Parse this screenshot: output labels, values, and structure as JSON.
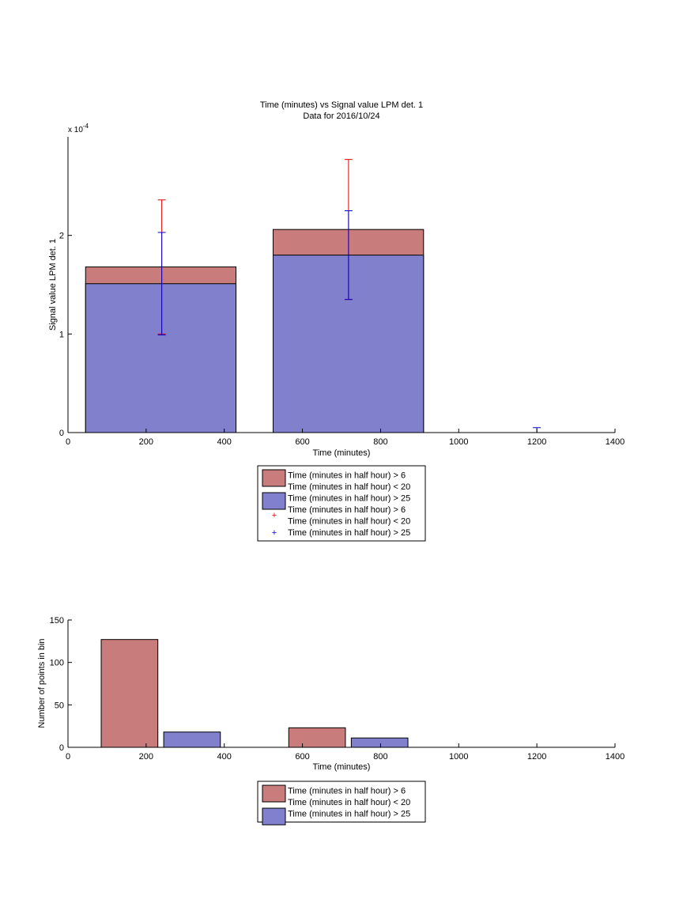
{
  "chart_data": [
    {
      "type": "bar",
      "title": "Time (minutes) vs Signal value LPM det. 1",
      "subtitle": "Data for 2016/10/24",
      "xlabel": "Time (minutes)",
      "ylabel": "Signal value LPM det. 1",
      "y_exponent_label": "x 10",
      "y_exponent_power": "-4",
      "xlim": [
        0,
        1400
      ],
      "ylim": [
        0,
        3
      ],
      "x_ticks": [
        "0",
        "200",
        "400",
        "600",
        "800",
        "1000",
        "1200",
        "1400"
      ],
      "y_ticks": [
        "0",
        "1",
        "2"
      ],
      "grid": false,
      "colors": {
        "red": "#c97c7c",
        "blue": "#8080cc",
        "err_red": "#dd0000",
        "err_blue": "#0000cc"
      },
      "bars": [
        {
          "x_start": 45,
          "x_end": 430,
          "blue_value": 1.51,
          "red_value": 1.68
        },
        {
          "x_start": 525,
          "x_end": 910,
          "blue_value": 1.8,
          "red_value": 2.06
        }
      ],
      "error_bars": [
        {
          "series": "red",
          "x": 240,
          "center": 1.68,
          "low": 1.0,
          "high": 2.36
        },
        {
          "series": "blue",
          "x": 240,
          "center": 1.51,
          "low": 0.99,
          "high": 2.03
        },
        {
          "series": "red",
          "x": 718,
          "center": 2.06,
          "low": 1.35,
          "high": 2.77
        },
        {
          "series": "blue",
          "x": 718,
          "center": 1.8,
          "low": 1.35,
          "high": 2.25
        },
        {
          "series": "blue",
          "x": 1200,
          "center": 0,
          "low": 0,
          "high": 0.05
        }
      ],
      "legend_position": "below",
      "legend": [
        {
          "kind": "patch",
          "color": "#c97c7c",
          "lines": [
            "Time (minutes in half hour) > 6",
            "Time (minutes in half hour) < 20"
          ]
        },
        {
          "kind": "patch",
          "color": "#8080cc",
          "lines": [
            "Time (minutes in half hour) > 25"
          ]
        },
        {
          "kind": "marker",
          "color": "#dd0000",
          "lines": [
            "Time (minutes in half hour) > 6",
            "Time (minutes in half hour) < 20"
          ]
        },
        {
          "kind": "marker",
          "color": "#0000cc",
          "lines": [
            "Time (minutes in half hour) > 25"
          ]
        }
      ]
    },
    {
      "type": "bar",
      "xlabel": "Time (minutes)",
      "ylabel": "Number of points in bin",
      "xlim": [
        0,
        1400
      ],
      "ylim": [
        0,
        150
      ],
      "x_ticks": [
        "0",
        "200",
        "400",
        "600",
        "800",
        "1000",
        "1200",
        "1400"
      ],
      "y_ticks": [
        "0",
        "50",
        "100",
        "150"
      ],
      "grid": false,
      "bars": [
        {
          "series": "red",
          "x_start": 85,
          "x_end": 230,
          "value": 127
        },
        {
          "series": "blue",
          "x_start": 245,
          "x_end": 390,
          "value": 18
        },
        {
          "series": "red",
          "x_start": 565,
          "x_end": 710,
          "value": 23
        },
        {
          "series": "blue",
          "x_start": 725,
          "x_end": 870,
          "value": 11
        }
      ],
      "legend_position": "below",
      "legend": [
        {
          "kind": "patch",
          "color": "#c97c7c",
          "lines": [
            "Time (minutes in half hour) > 6",
            "Time (minutes in half hour) < 20"
          ]
        },
        {
          "kind": "patch",
          "color": "#8080cc",
          "lines": [
            "Time (minutes in half hour) > 25"
          ]
        }
      ]
    }
  ]
}
